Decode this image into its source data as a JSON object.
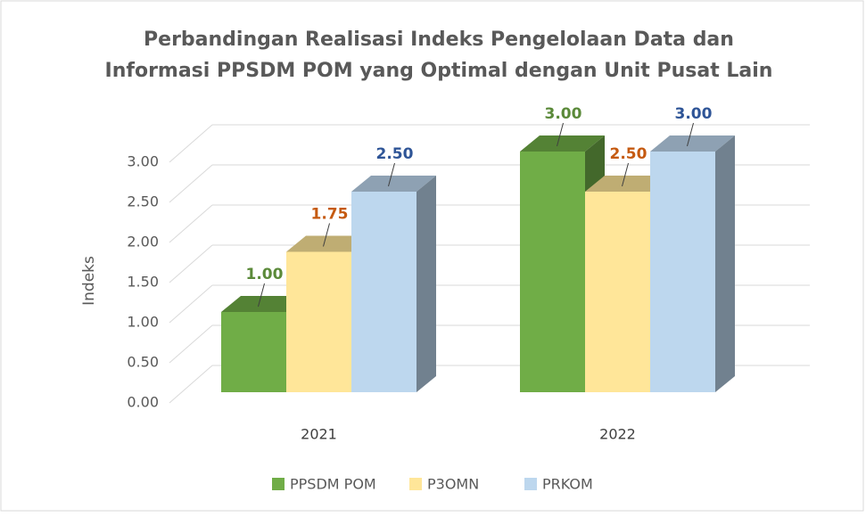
{
  "chart_data": {
    "type": "bar",
    "title": [
      "Perbandingan Realisasi Indeks Pengelolaan Data dan",
      "Informasi PPSDM POM yang Optimal dengan Unit Pusat Lain"
    ],
    "y_label": "Indeks",
    "categories": [
      "2021",
      "2022"
    ],
    "series": [
      {
        "name": "PPSDM POM",
        "color": "#70ad47",
        "label_color": "#5b8a3a",
        "values": [
          1,
          3
        ],
        "value_labels": [
          "1.00",
          "3.00"
        ]
      },
      {
        "name": "P3OMN",
        "color": "#ffe699",
        "label_color": "#c55a11",
        "values": [
          1.75,
          2.5
        ],
        "value_labels": [
          "1.75",
          "2.50"
        ]
      },
      {
        "name": "PRKOM",
        "color": "#bdd7ee",
        "label_color": "#2f5597",
        "values": [
          2.5,
          3
        ],
        "value_labels": [
          "2.50",
          "3.00"
        ]
      }
    ],
    "ylim": [
      0,
      3
    ],
    "yticks": [
      {
        "value": 0,
        "label": "0.00"
      },
      {
        "value": 0.5,
        "label": "0.50"
      },
      {
        "value": 1,
        "label": "1.00"
      },
      {
        "value": 1.5,
        "label": "1.50"
      },
      {
        "value": 2,
        "label": "2.00"
      },
      {
        "value": 2.5,
        "label": "2.50"
      },
      {
        "value": 3,
        "label": "3.00"
      }
    ],
    "grid": true,
    "legend": "bottom"
  }
}
